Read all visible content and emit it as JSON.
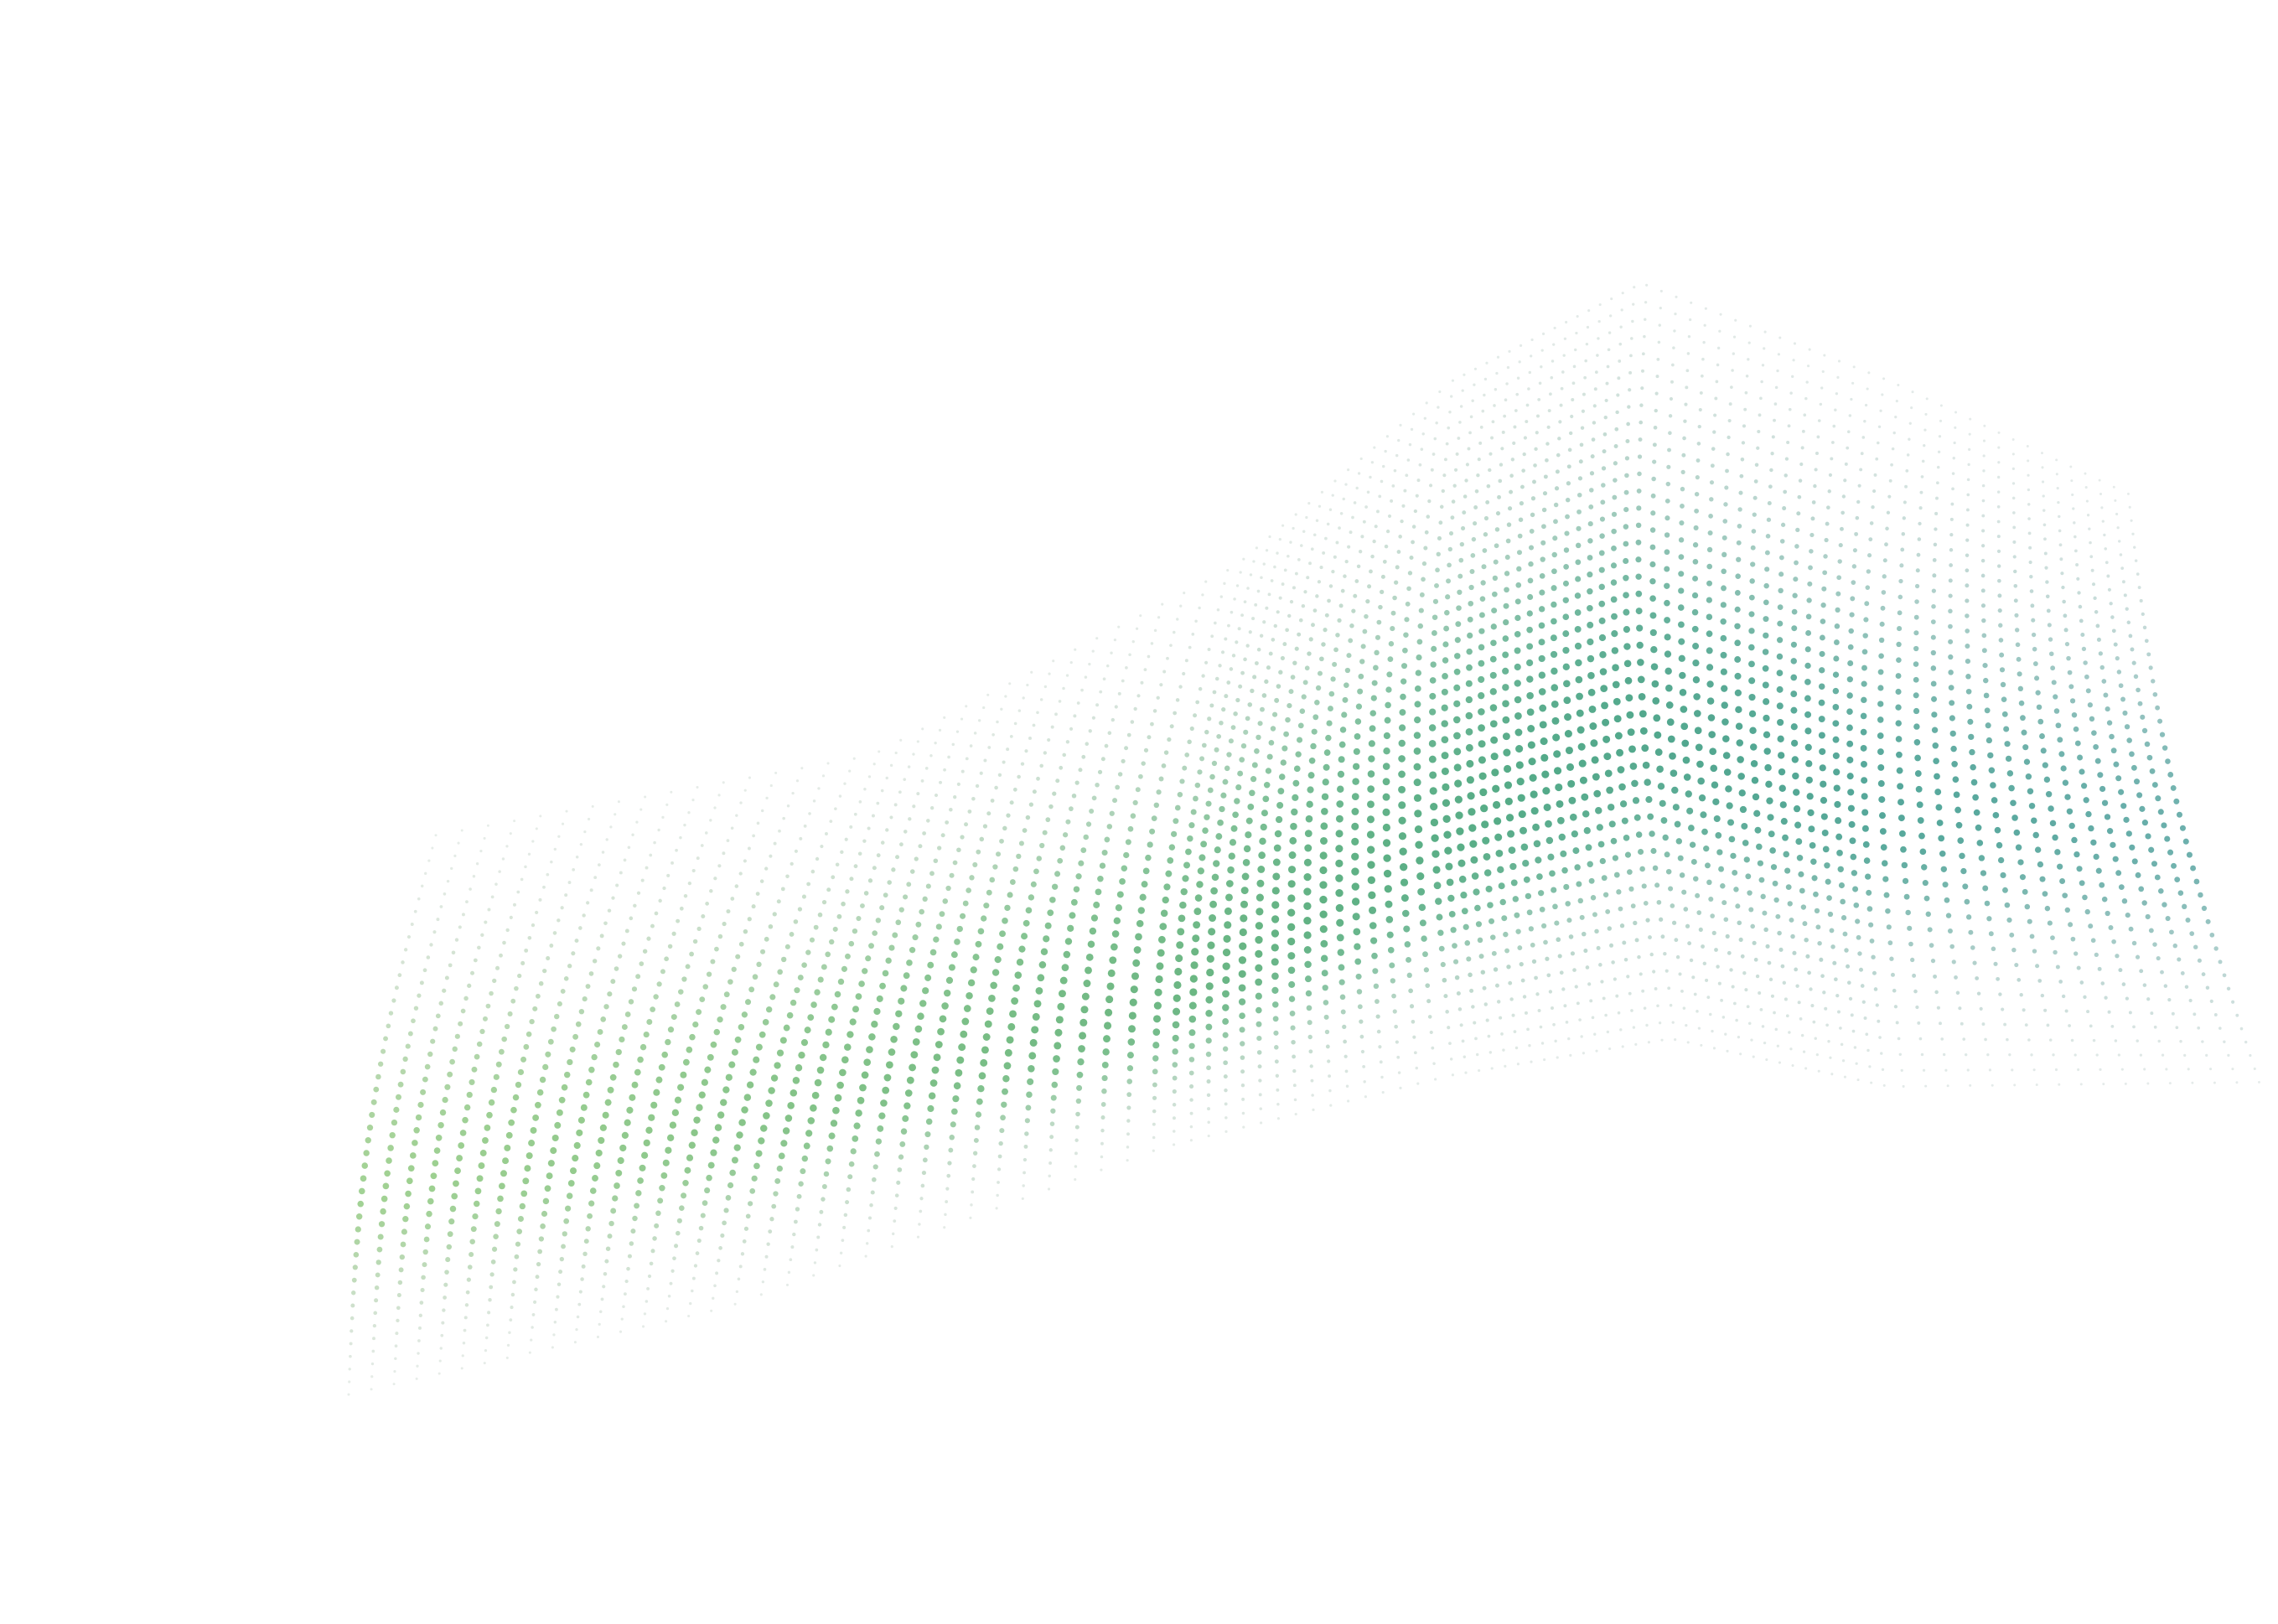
{
  "graphic": {
    "kind": "dotted-wave-surface",
    "colors": {
      "background": "#ffffff",
      "left_dot": "#8cc77a",
      "middle_dot": "#5aae86",
      "right_dot": "#2a8f8a",
      "faint_dot": "#b8c4c0"
    }
  }
}
